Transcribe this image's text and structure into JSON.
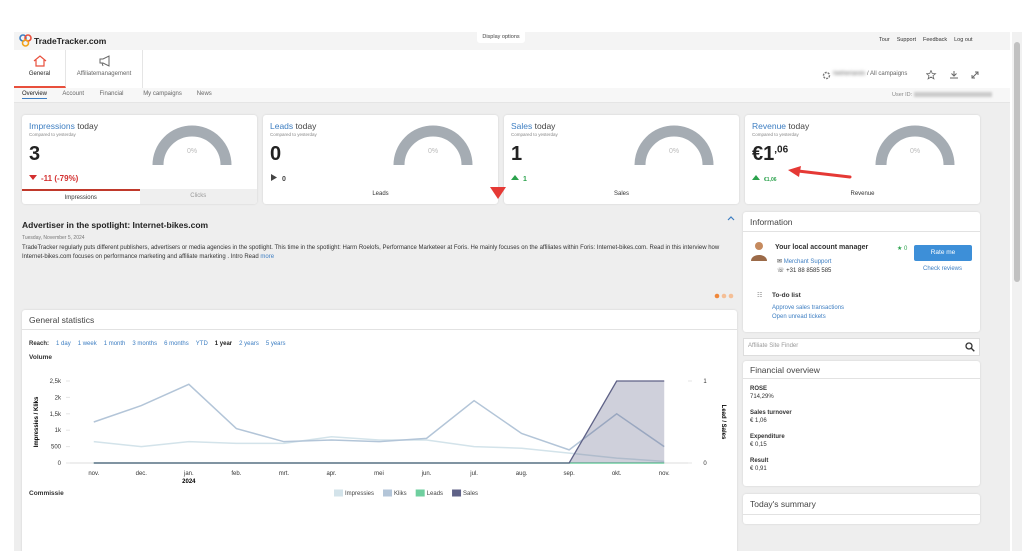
{
  "header": {
    "logo": "TradeTracker.com",
    "display_options": "Display options",
    "links": [
      "Tour",
      "Support",
      "Feedback",
      "Log out"
    ]
  },
  "nav": {
    "tabs": [
      {
        "label": "General",
        "selected": true
      },
      {
        "label": "Affiliatemanagement"
      }
    ],
    "campaign_account": "Netherlands",
    "campaign": "/ All campaigns",
    "subtabs": [
      {
        "label": "Overview",
        "selected": true
      },
      {
        "label": "Account"
      },
      {
        "label": "Financial"
      },
      {
        "label": "My campaigns"
      },
      {
        "label": "News"
      }
    ],
    "user_id": "User ID:"
  },
  "cards": [
    {
      "title": "Impressions",
      "period": "today",
      "subtitle": "Compared to yesterday",
      "value": "3",
      "gauge": "0%",
      "change": "-11 (-79%)",
      "trend": "down",
      "tabs": [
        "Impressions",
        "Clicks"
      ]
    },
    {
      "title": "Leads",
      "period": "today",
      "subtitle": "Compared to yesterday",
      "value": "0",
      "gauge": "0%",
      "change": "0",
      "trend": "flat",
      "footer": "Leads"
    },
    {
      "title": "Sales",
      "period": "today",
      "subtitle": "Compared to yesterday",
      "value": "1",
      "gauge": "0%",
      "change": "1",
      "trend": "up",
      "footer": "Sales"
    },
    {
      "title": "Revenue",
      "period": "today",
      "subtitle": "Compared to yesterday",
      "value": "€1",
      "value_decimals": ",06",
      "gauge": "0%",
      "change": "€1,06",
      "trend": "up",
      "footer": "Revenue"
    }
  ],
  "spotlight": {
    "title": "Advertiser in the spotlight: Internet-bikes.com",
    "date": "Tuesday, November 5, 2024",
    "text": "TradeTracker regularly puts different publishers, advertisers or media agencies in the spotlight. This time in the spotlight: Harm Roelofs, Performance Marketeer at Foris. He mainly focuses on the affiliates within Foris: Internet-bikes.com. Read in this interview how Internet-bikes.com focuses on performance marketing and affiliate marketing . Intro Read",
    "more": "more"
  },
  "statistics": {
    "title": "General statistics",
    "reach_label": "Reach:",
    "reach": [
      {
        "label": "1 day"
      },
      {
        "label": "1 week"
      },
      {
        "label": "1 month"
      },
      {
        "label": "3 months"
      },
      {
        "label": "6 months"
      },
      {
        "label": "YTD"
      },
      {
        "label": "1 year",
        "selected": true
      },
      {
        "label": "2 years"
      },
      {
        "label": "5 years"
      }
    ],
    "commission_label": "Commissie"
  },
  "chart_data": {
    "type": "line",
    "title": "Volume",
    "categories": [
      "nov.",
      "dec.",
      "jan.",
      "feb.",
      "mrt.",
      "apr.",
      "mei",
      "jun.",
      "jul.",
      "aug.",
      "sep.",
      "okt.",
      "nov."
    ],
    "year_label": "2024",
    "y_label": "Impressies / Kliks",
    "y2_label": "Lead / Sales",
    "ylim": [
      0,
      2500
    ],
    "yticks": [
      0,
      500,
      {
        "value": 1000,
        "label": "1k"
      },
      {
        "value": 1500,
        "label": "1,5k"
      },
      {
        "value": 2000,
        "label": "2k"
      },
      {
        "value": 2500,
        "label": "2,5k"
      }
    ],
    "y2lim": [
      0,
      1
    ],
    "y2ticks": [
      0,
      1
    ],
    "grid": false,
    "legend": "bottom",
    "series": [
      {
        "name": "Impressies",
        "color": "#d3e3ea",
        "values": [
          650,
          500,
          650,
          600,
          600,
          800,
          700,
          700,
          500,
          450,
          300,
          150,
          50
        ]
      },
      {
        "name": "Kliks",
        "color": "#b3c5d8",
        "values": [
          1250,
          1750,
          2400,
          1050,
          650,
          700,
          650,
          750,
          1900,
          900,
          400,
          1500,
          500
        ]
      },
      {
        "name": "Leads",
        "color": "#6fcf9f",
        "values": [
          0,
          0,
          0,
          0,
          0,
          0,
          0,
          0,
          0,
          0,
          0,
          0,
          0
        ],
        "axis": "y2"
      },
      {
        "name": "Sales",
        "color": "#5f6287",
        "values": [
          0,
          0,
          0,
          0,
          0,
          0,
          0,
          0,
          0,
          0,
          0,
          1,
          1
        ],
        "axis": "y2",
        "area": true
      }
    ]
  },
  "information": {
    "title": "Information",
    "manager_label": "Your local account manager",
    "stars": "0",
    "manager": "Merchant Support",
    "phone": "+31 88 8585 585",
    "rate": "Rate me",
    "reviews": "Check reviews",
    "todo_title": "To-do list",
    "todo": [
      "Approve sales transactions",
      "Open unread tickets"
    ]
  },
  "finder": {
    "placeholder": "Affiliate Site Finder"
  },
  "financial": {
    "title": "Financial overview",
    "items": [
      {
        "label": "ROSE",
        "value": "714,29%"
      },
      {
        "label": "Sales turnover",
        "value": "€ 1,06"
      },
      {
        "label": "Expenditure",
        "value": "€ 0,15"
      },
      {
        "label": "Result",
        "value": "€ 0,91"
      }
    ]
  },
  "summary": {
    "title": "Today's summary"
  }
}
